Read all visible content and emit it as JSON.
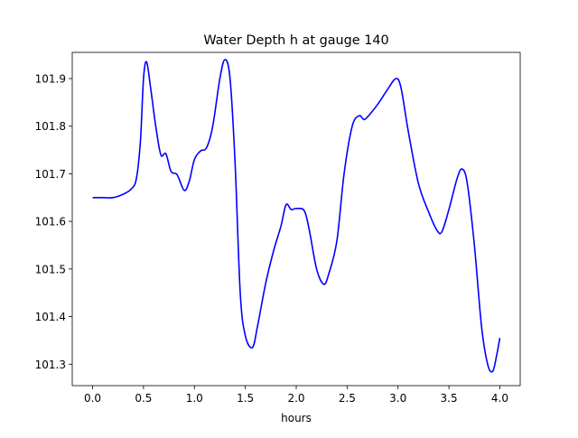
{
  "chart_data": {
    "type": "line",
    "title": "Water Depth h at gauge 140",
    "xlabel": "hours",
    "ylabel": "",
    "xlim": [
      -0.2,
      4.2
    ],
    "ylim": [
      101.255,
      101.955
    ],
    "xticks": [
      0.0,
      0.5,
      1.0,
      1.5,
      2.0,
      2.5,
      3.0,
      3.5,
      4.0
    ],
    "xtick_labels": [
      "0.0",
      "0.5",
      "1.0",
      "1.5",
      "2.0",
      "2.5",
      "3.0",
      "3.5",
      "4.0"
    ],
    "yticks": [
      101.3,
      101.4,
      101.5,
      101.6,
      101.7,
      101.8,
      101.9
    ],
    "ytick_labels": [
      "101.3",
      "101.4",
      "101.5",
      "101.6",
      "101.7",
      "101.8",
      "101.9"
    ],
    "grid": false,
    "legend": "none",
    "series": [
      {
        "color": "#0000ff",
        "points": [
          [
            0.0,
            101.65
          ],
          [
            0.1,
            101.65
          ],
          [
            0.2,
            101.65
          ],
          [
            0.3,
            101.657
          ],
          [
            0.38,
            101.668
          ],
          [
            0.43,
            101.69
          ],
          [
            0.47,
            101.77
          ],
          [
            0.5,
            101.9
          ],
          [
            0.53,
            101.935
          ],
          [
            0.57,
            101.88
          ],
          [
            0.62,
            101.8
          ],
          [
            0.67,
            101.74
          ],
          [
            0.72,
            101.742
          ],
          [
            0.77,
            101.705
          ],
          [
            0.83,
            101.698
          ],
          [
            0.9,
            101.665
          ],
          [
            0.95,
            101.685
          ],
          [
            1.0,
            101.73
          ],
          [
            1.06,
            101.748
          ],
          [
            1.12,
            101.755
          ],
          [
            1.18,
            101.8
          ],
          [
            1.25,
            101.9
          ],
          [
            1.3,
            101.94
          ],
          [
            1.35,
            101.9
          ],
          [
            1.4,
            101.72
          ],
          [
            1.45,
            101.45
          ],
          [
            1.5,
            101.36
          ],
          [
            1.57,
            101.335
          ],
          [
            1.62,
            101.38
          ],
          [
            1.7,
            101.47
          ],
          [
            1.78,
            101.54
          ],
          [
            1.85,
            101.59
          ],
          [
            1.9,
            101.635
          ],
          [
            1.95,
            101.625
          ],
          [
            2.0,
            101.627
          ],
          [
            2.08,
            101.622
          ],
          [
            2.13,
            101.58
          ],
          [
            2.2,
            101.5
          ],
          [
            2.27,
            101.468
          ],
          [
            2.32,
            101.49
          ],
          [
            2.4,
            101.56
          ],
          [
            2.47,
            101.7
          ],
          [
            2.55,
            101.8
          ],
          [
            2.62,
            101.822
          ],
          [
            2.67,
            101.814
          ],
          [
            2.75,
            101.832
          ],
          [
            2.82,
            101.852
          ],
          [
            2.9,
            101.878
          ],
          [
            2.98,
            101.9
          ],
          [
            3.03,
            101.88
          ],
          [
            3.1,
            101.79
          ],
          [
            3.2,
            101.68
          ],
          [
            3.3,
            101.62
          ],
          [
            3.38,
            101.582
          ],
          [
            3.43,
            101.578
          ],
          [
            3.5,
            101.625
          ],
          [
            3.58,
            101.69
          ],
          [
            3.63,
            101.71
          ],
          [
            3.68,
            101.68
          ],
          [
            3.75,
            101.55
          ],
          [
            3.82,
            101.38
          ],
          [
            3.88,
            101.3
          ],
          [
            3.93,
            101.285
          ],
          [
            3.97,
            101.32
          ],
          [
            4.0,
            101.355
          ]
        ]
      }
    ]
  }
}
